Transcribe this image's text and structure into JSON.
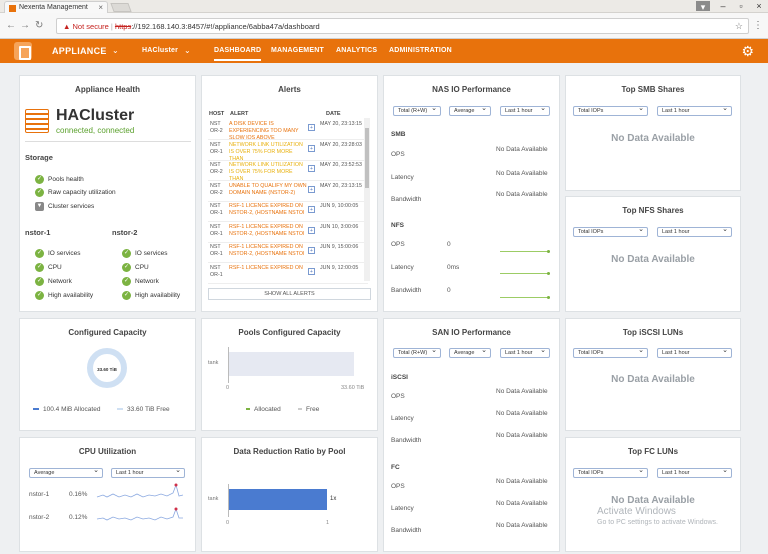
{
  "browser": {
    "tab_title": "Nexenta Management",
    "not_secure": "Not secure",
    "url_strike": "https",
    "url_rest": "://192.168.140.3:8457/#!/appliance/6abba47a/dashboard"
  },
  "nav": {
    "appliance": "APPLIANCE",
    "cluster": "HACluster",
    "links": [
      "DASHBOARD",
      "MANAGEMENT",
      "ANALYTICS",
      "ADMINISTRATION"
    ]
  },
  "health": {
    "title": "Appliance Health",
    "cluster_name": "HACluster",
    "status": "connected, connected",
    "storage_label": "Storage",
    "storage_items": [
      "Pools health",
      "Raw capacity utilization",
      "Cluster services"
    ],
    "nodes": [
      {
        "name": "nstor-1",
        "items": [
          "IO services",
          "CPU",
          "Network",
          "High availability"
        ]
      },
      {
        "name": "nstor-2",
        "items": [
          "IO services",
          "CPU",
          "Network",
          "High availability"
        ]
      }
    ]
  },
  "alerts": {
    "title": "Alerts",
    "col_host": "HOST",
    "col_alert": "ALERT",
    "col_date": "DATE",
    "rows": [
      {
        "host": "NST OR-2",
        "msg": "A DISK DEVICE IS EXPERIENCING TOO MANY SLOW IOS ABOVE",
        "date": "MAY 20, 23:13:15",
        "yellow": false
      },
      {
        "host": "NST OR-1",
        "msg": "NETWORK LINK UTILIZATION IS OVER 75% FOR MORE THAN",
        "date": "MAY 20, 23:28:03",
        "yellow": true
      },
      {
        "host": "NST OR-2",
        "msg": "NETWORK LINK UTILIZATION IS OVER 75% FOR MORE THAN",
        "date": "MAY 20, 23:52:53",
        "yellow": true
      },
      {
        "host": "NST OR-2",
        "msg": "UNABLE TO QUALIFY MY OWN DOMAIN NAME (NSTOR-2)",
        "date": "MAY 20, 23:13:15",
        "yellow": false
      },
      {
        "host": "NST OR-1",
        "msg": "RSF-1 LICENCE EXPIRED ON NSTOR-2, (HOSTNAME NSTOI",
        "date": "JUN 9, 10:00:05",
        "yellow": false
      },
      {
        "host": "NST OR-1",
        "msg": "RSF-1 LICENCE EXPIRED ON NSTOR-2, (HOSTNAME NSTOI",
        "date": "JUN 10, 3:00:06",
        "yellow": false
      },
      {
        "host": "NST OR-1",
        "msg": "RSF-1 LICENCE EXPIRED ON NSTOR-2, (HOSTNAME NSTOI",
        "date": "JUN 9, 15:00:06",
        "yellow": false
      },
      {
        "host": "NST OR-1",
        "msg": "RSF-1 LICENCE EXPIRED ON",
        "date": "JUN 9, 12:00:05",
        "yellow": false
      }
    ],
    "show_all": "SHOW ALL ALERTS"
  },
  "nas": {
    "title": "NAS IO Performance",
    "selects": [
      "Total (R+W)",
      "Average",
      "Last 1 hour"
    ],
    "smb_label": "SMB",
    "smb_rows": [
      {
        "label": "OPS",
        "value": "No Data Available"
      },
      {
        "label": "Latency",
        "value": "No Data Available"
      },
      {
        "label": "Bandwidth",
        "value": "No Data Available"
      }
    ],
    "nfs_label": "NFS",
    "nfs_rows": [
      {
        "label": "OPS",
        "value": "0"
      },
      {
        "label": "Latency",
        "value": "0ms"
      },
      {
        "label": "Bandwidth",
        "value": "0"
      }
    ]
  },
  "smb_shares": {
    "title": "Top SMB Shares",
    "selects": [
      "Total IOPs",
      "Last 1 hour"
    ],
    "nodata": "No Data Available"
  },
  "nfs_shares": {
    "title": "Top NFS Shares",
    "selects": [
      "Total IOPs",
      "Last 1 hour"
    ],
    "nodata": "No Data Available"
  },
  "iscsi_luns": {
    "title": "Top iSCSI LUNs",
    "selects": [
      "Total IOPs",
      "Last 1 hour"
    ],
    "nodata": "No Data Available"
  },
  "fc_luns": {
    "title": "Top FC LUNs",
    "selects": [
      "Total IOPs",
      "Last 1 hour"
    ],
    "nodata": "No Data Available"
  },
  "capacity": {
    "title": "Configured Capacity",
    "donut_label": "33.60 TiB",
    "allocated": "100.4 MiB Allocated",
    "free": "33.60 TiB Free",
    "color_alloc": "#4a7bd0",
    "color_free": "#cfe0f3"
  },
  "pools": {
    "title": "Pools Configured Capacity",
    "pool": "tank",
    "axis_min": "0",
    "axis_max": "33.60 TiB",
    "legend_alloc": "Allocated",
    "legend_free": "Free"
  },
  "san": {
    "title": "SAN IO Performance",
    "selects": [
      "Total (R+W)",
      "Average",
      "Last 1 hour"
    ],
    "iscsi_label": "iSCSI",
    "iscsi_rows": [
      {
        "label": "OPS",
        "value": "No Data Available"
      },
      {
        "label": "Latency",
        "value": "No Data Available"
      },
      {
        "label": "Bandwidth",
        "value": "No Data Available"
      }
    ],
    "fc_label": "FC",
    "fc_rows": [
      {
        "label": "OPS",
        "value": "No Data Available"
      },
      {
        "label": "Latency",
        "value": "No Data Available"
      },
      {
        "label": "Bandwidth",
        "value": "No Data Available"
      }
    ]
  },
  "cpu": {
    "title": "CPU Utilization",
    "selects": [
      "Average",
      "Last 1 hour"
    ],
    "rows": [
      {
        "node": "nstor-1",
        "value": "0.16%"
      },
      {
        "node": "nstor-2",
        "value": "0.12%"
      }
    ]
  },
  "ddr": {
    "title": "Data Reduction Ratio by Pool",
    "pool": "tank",
    "value_label": "1x",
    "axis_min": "0",
    "axis_max": "1",
    "ratio": 1
  },
  "watermark": {
    "line1": "Activate Windows",
    "line2": "Go to PC settings to activate Windows."
  }
}
